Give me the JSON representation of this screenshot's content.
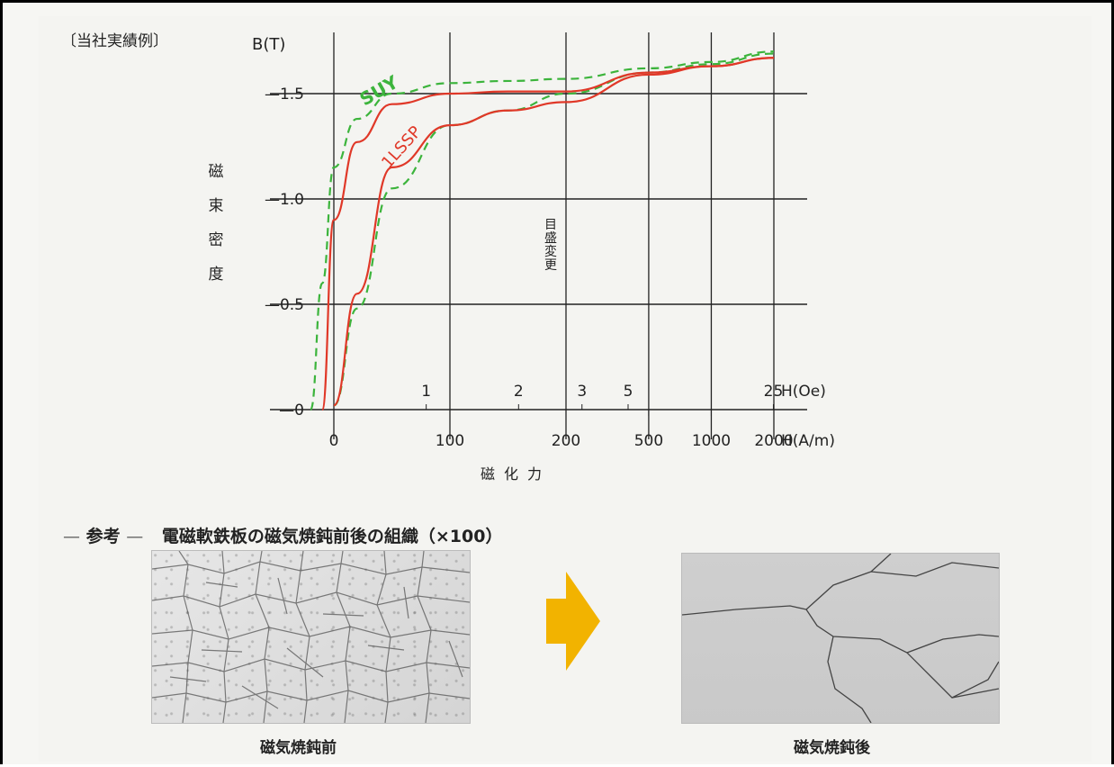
{
  "caption_tag": "〔当社実績例〕",
  "chart_data": {
    "type": "line",
    "title": "",
    "ylabel": "磁束密度",
    "y_unit_label": "B(T)",
    "xlabel": "磁化力",
    "x_axis_labels": [
      "H(A/m)",
      "H(Oe)"
    ],
    "ylim": [
      0,
      1.7
    ],
    "y_ticks": [
      "0",
      "0.5",
      "1.0",
      "1.5"
    ],
    "x_ticks_Am": [
      "0",
      "100",
      "200",
      "500",
      "1000",
      "2000"
    ],
    "x_ticks_Oe": [
      "1",
      "2",
      "3",
      "5",
      "25"
    ],
    "scale_change_label": "目盛変更",
    "grid": true,
    "series": [
      {
        "name": "SUY",
        "color": "#3cb43c",
        "style": "dashed",
        "x": [
          -20,
          -10,
          0,
          20,
          50,
          100,
          150,
          200,
          500,
          1000,
          2000
        ],
        "y": [
          0,
          0.6,
          1.15,
          1.38,
          1.5,
          1.55,
          1.56,
          1.57,
          1.62,
          1.65,
          1.7
        ]
      },
      {
        "name": "",
        "color": "#3cb43c",
        "style": "dashed",
        "x": [
          0,
          20,
          50,
          100,
          150,
          200,
          500,
          1000,
          2000
        ],
        "y": [
          0.02,
          0.48,
          1.05,
          1.35,
          1.42,
          1.5,
          1.6,
          1.64,
          1.69
        ]
      },
      {
        "name": "1LSSP",
        "color": "#e03828",
        "style": "solid",
        "x": [
          -10,
          0,
          20,
          50,
          100,
          150,
          200,
          500,
          1000,
          2000
        ],
        "y": [
          0,
          0.9,
          1.27,
          1.45,
          1.5,
          1.51,
          1.51,
          1.6,
          1.63,
          1.67
        ]
      },
      {
        "name": "",
        "color": "#e03828",
        "style": "solid",
        "x": [
          0,
          20,
          50,
          100,
          150,
          200,
          500,
          1000,
          2000
        ],
        "y": [
          0.02,
          0.55,
          1.15,
          1.35,
          1.42,
          1.46,
          1.59,
          1.63,
          1.67
        ]
      }
    ]
  },
  "reference": {
    "dash": "—",
    "label": "参考",
    "title": "電磁軟鉄板の磁気焼鈍前後の組織（×100）"
  },
  "micrographs": {
    "before_label": "磁気焼鈍前",
    "after_label": "磁気焼鈍後",
    "arrow_color": "#f2b300"
  }
}
